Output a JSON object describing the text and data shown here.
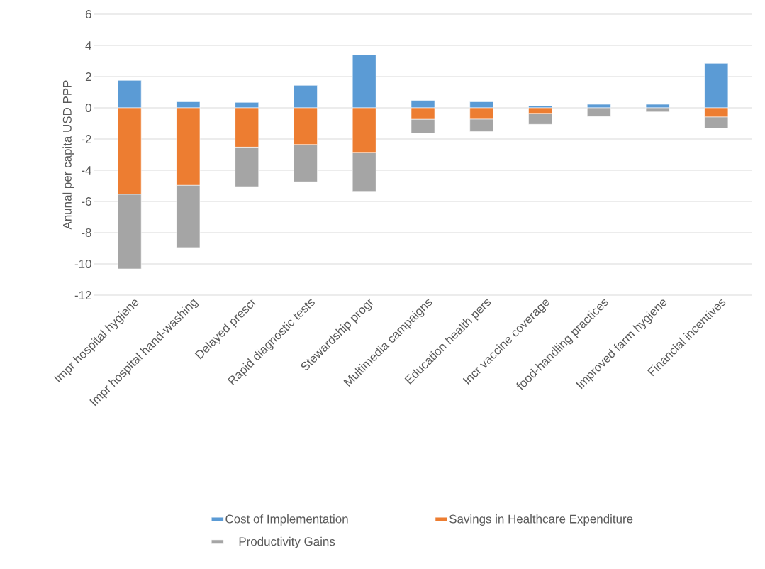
{
  "chart_data": {
    "type": "bar",
    "stacked": true,
    "ylabel": "Anunal per capita USD PPP",
    "categories": [
      "Impr hospital hygiene",
      "Impr hospital hand-washing",
      "Delayed prescr",
      "Rapid diagnostic tests",
      "Stewardship progr",
      "Multimedia campaigns",
      "Education health pers",
      "Incr vaccine coverage",
      "food-handling practices",
      "Improved farm hygiene",
      "Financial incentives"
    ],
    "series": [
      {
        "name": "Cost of Implementation",
        "color": "#5b9bd5",
        "values": [
          1.76,
          0.39,
          0.35,
          1.44,
          3.39,
          0.48,
          0.39,
          0.14,
          0.24,
          0.24,
          2.85
        ]
      },
      {
        "name": "Savings in Healthcare Expenditure",
        "color": "#ed7d31",
        "values": [
          -5.55,
          -4.97,
          -2.52,
          -2.36,
          -2.86,
          -0.74,
          -0.73,
          -0.36,
          0,
          0,
          -0.59
        ]
      },
      {
        "name": "Productivity Gains",
        "color": "#a5a5a5",
        "values": [
          -4.77,
          -3.98,
          -2.53,
          -2.38,
          -2.49,
          -0.9,
          -0.79,
          -0.7,
          -0.56,
          -0.26,
          -0.71
        ]
      }
    ],
    "ylim": [
      -12,
      6
    ],
    "yticks": [
      -12,
      -10,
      -8,
      -6,
      -4,
      -2,
      0,
      2,
      4,
      6
    ],
    "grid": "y",
    "legend": "bottom"
  }
}
